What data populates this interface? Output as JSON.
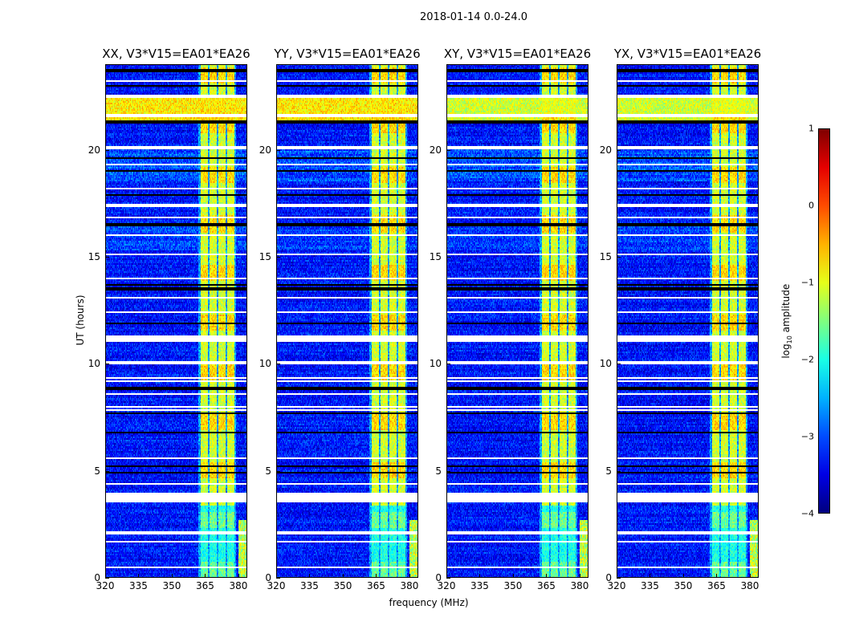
{
  "title": "2018-01-14 0.0-24.0",
  "chart_data": {
    "type": "heatmap",
    "panels": [
      {
        "title": "XX, V3*V15=EA01*EA26"
      },
      {
        "title": "YY, V3*V15=EA01*EA26"
      },
      {
        "title": "XY, V3*V15=EA01*EA26"
      },
      {
        "title": "YX, V3*V15=EA01*EA26"
      }
    ],
    "xlabel": "frequency (MHz)",
    "ylabel": "UT (hours)",
    "xlim": [
      320,
      384
    ],
    "ylim": [
      0,
      24
    ],
    "xticks": [
      "320",
      "335",
      "350",
      "365",
      "380"
    ],
    "xtick_values": [
      320,
      335,
      350,
      365,
      380
    ],
    "yticks": [
      "0",
      "5",
      "10",
      "15",
      "20"
    ],
    "ytick_values": [
      0,
      5,
      10,
      15,
      20
    ],
    "colorbar": {
      "label_prefix": "log",
      "label_sub": "10",
      "label_suffix": " amplitude",
      "range": [
        -4,
        1
      ],
      "ticks": [
        "1",
        "0",
        "−1",
        "−2",
        "−3",
        "−4"
      ],
      "tick_values": [
        1,
        0,
        -1,
        -2,
        -3,
        -4
      ],
      "colormap": "jet"
    },
    "background_level": -3.3,
    "rfi_channels_mhz": [
      [
        363,
        366.3
      ],
      [
        367,
        370.3
      ],
      [
        371,
        374.3
      ],
      [
        375,
        378.3
      ]
    ],
    "rfi_level": -1.1,
    "strong_band_ut": [
      21.2,
      22.4
    ],
    "strong_band_level": -0.8,
    "flagged_ut_white": [
      0.5,
      1.7,
      2.1,
      3.6,
      3.75,
      3.9,
      4.4,
      5.6,
      7.85,
      8.0,
      8.6,
      9.2,
      9.35,
      10.05,
      11.1,
      11.2,
      11.3,
      12.4,
      13.1,
      14.0,
      15.1,
      16.0,
      16.85,
      17.4,
      18.2,
      19.3,
      20.05,
      20.15,
      21.6,
      22.5,
      23.2
    ],
    "flagged_ut_black": [
      4.9,
      5.2,
      6.8,
      7.7,
      8.85,
      11.9,
      13.5,
      13.7,
      16.5,
      17.9,
      19.0,
      19.6,
      21.3,
      23.0,
      23.7
    ]
  }
}
